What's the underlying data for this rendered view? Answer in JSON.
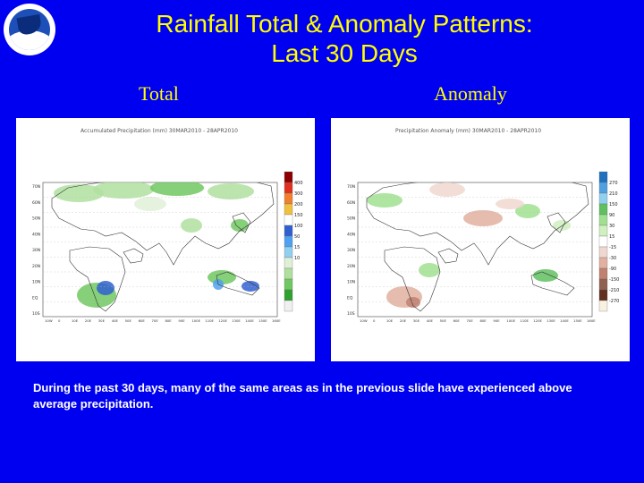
{
  "logo": {
    "icon": "noaa-logo-icon",
    "text": "NOAA"
  },
  "title": {
    "line1": "Rainfall Total & Anomaly Patterns:",
    "line2": "Last 30 Days"
  },
  "panels": [
    {
      "label": "Total",
      "map_caption": "Accumulated Precipitation (mm) 30MAR2010 - 28APR2010",
      "legend": {
        "ticks": [
          "400",
          "300",
          "200",
          "150",
          "100",
          "50",
          "15",
          "10"
        ],
        "colors": [
          "#8b0000",
          "#e03020",
          "#f08030",
          "#f0c040",
          "#ffffff",
          "#3060d0",
          "#50a0f0",
          "#90d0f0",
          "#e0f0d8",
          "#b0e0a0",
          "#70c860",
          "#30a030",
          "#f0f0f0"
        ]
      },
      "lat_labels": [
        "70N",
        "60N",
        "50N",
        "40N",
        "30N",
        "20N",
        "10N",
        "EQ",
        "10S"
      ],
      "lon_labels": [
        "10W",
        "0",
        "10E",
        "20E",
        "30E",
        "40E",
        "50E",
        "60E",
        "70E",
        "80E",
        "90E",
        "100E",
        "110E",
        "120E",
        "130E",
        "140E",
        "150E",
        "160E"
      ]
    },
    {
      "label": "Anomaly",
      "map_caption": "Precipitation Anomaly (mm) 30MAR2010 - 28APR2010",
      "legend": {
        "ticks": [
          "270",
          "210",
          "150",
          "90",
          "30",
          "15",
          "-15",
          "-30",
          "-90",
          "-150",
          "-210",
          "-270"
        ],
        "colors": [
          "#2070c0",
          "#50a0e0",
          "#90d0f0",
          "#60c060",
          "#a0e090",
          "#d0f0c0",
          "#ffffff",
          "#f0d8d0",
          "#e0b0a0",
          "#c08070",
          "#906050",
          "#603020",
          "#f8f0e0"
        ]
      },
      "lat_labels": [
        "70N",
        "60N",
        "50N",
        "40N",
        "30N",
        "20N",
        "10N",
        "EQ",
        "10S"
      ],
      "lon_labels": [
        "10W",
        "0",
        "10E",
        "20E",
        "30E",
        "40E",
        "50E",
        "60E",
        "70E",
        "80E",
        "90E",
        "100E",
        "110E",
        "120E",
        "130E",
        "140E",
        "150E",
        "160E"
      ]
    }
  ],
  "description": "During the past 30 days, many of the same areas as in the previous slide have experienced above average precipitation."
}
